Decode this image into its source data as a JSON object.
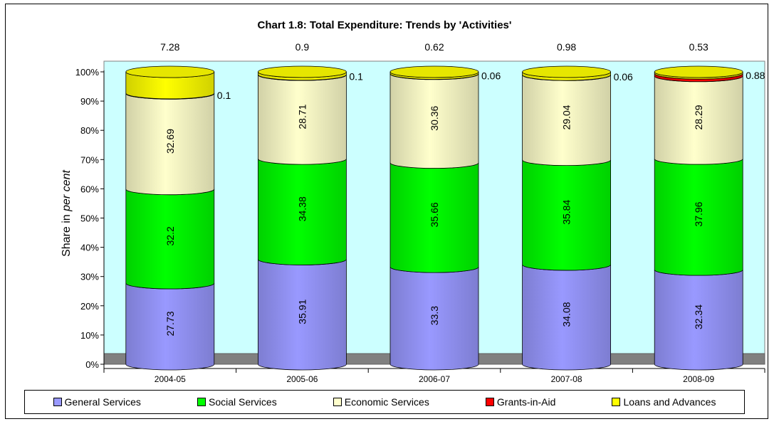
{
  "chart_data": {
    "type": "bar",
    "stacked": true,
    "percent_stacked": true,
    "title": "Chart 1.8: Total Expenditure: Trends by 'Activities'",
    "xlabel": "",
    "ylabel_prefix": "Share in ",
    "ylabel_italic": "per cent",
    "ylim": [
      0,
      100
    ],
    "yticks": [
      "0%",
      "10%",
      "20%",
      "30%",
      "40%",
      "50%",
      "60%",
      "70%",
      "80%",
      "90%",
      "100%"
    ],
    "categories": [
      "2004-05",
      "2005-06",
      "2006-07",
      "2007-08",
      "2008-09"
    ],
    "series": [
      {
        "name": "General Services",
        "color": "#9999ff",
        "values": [
          27.73,
          35.91,
          33.3,
          34.08,
          32.34
        ]
      },
      {
        "name": "Social Services",
        "color": "#00ff00",
        "values": [
          32.2,
          34.38,
          35.66,
          35.84,
          37.96
        ]
      },
      {
        "name": "Economic Services",
        "color": "#ffffcc",
        "values": [
          32.69,
          28.71,
          30.36,
          29.04,
          28.29
        ]
      },
      {
        "name": "Grants-in-Aid",
        "color": "#ff0000",
        "values": [
          0.1,
          0.1,
          0.06,
          0.06,
          0.88
        ]
      },
      {
        "name": "Loans and Advances",
        "color": "#ffff00",
        "values": [
          7.28,
          0.9,
          0.62,
          0.98,
          0.53
        ]
      }
    ],
    "legend_position": "bottom",
    "plot_background": "#ccffff"
  }
}
